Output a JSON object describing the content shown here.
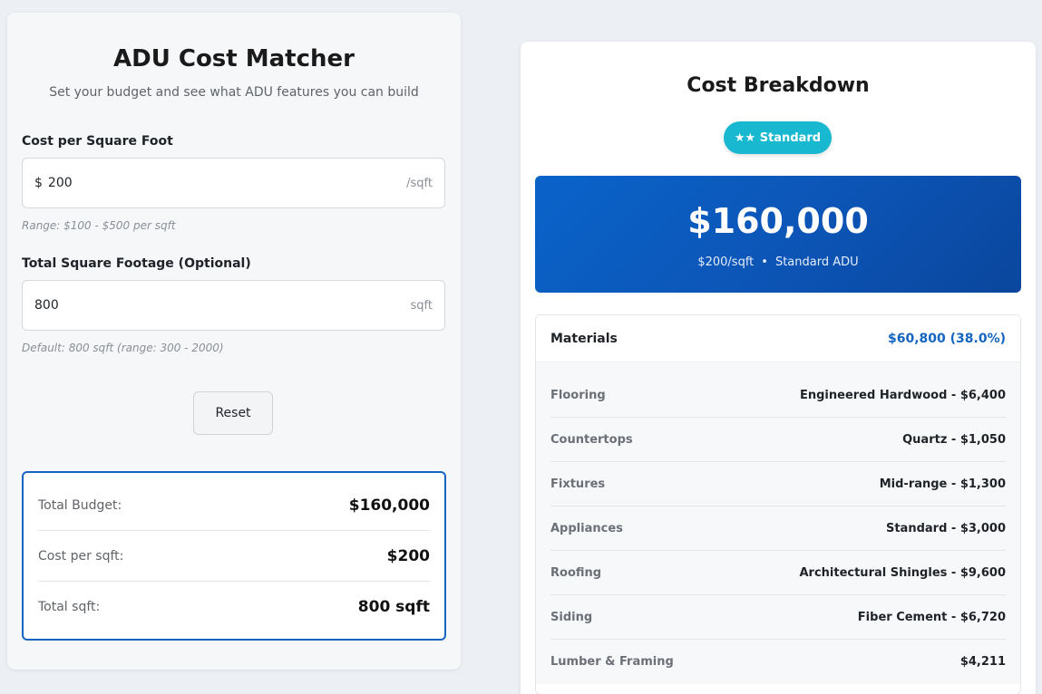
{
  "app": {
    "title": "ADU Cost Matcher",
    "subtitle": "Set your budget and see what ADU features you can build"
  },
  "form": {
    "cost_label": "Cost per Square Foot",
    "cost_prefix": "$",
    "cost_value": "200",
    "cost_suffix": "/sqft",
    "cost_hint": "Range: $100 - $500 per sqft",
    "sqft_label": "Total Square Footage (Optional)",
    "sqft_value": "800",
    "sqft_suffix": "sqft",
    "sqft_hint": "Default: 800 sqft (range: 300 - 2000)",
    "reset_label": "Reset"
  },
  "summary": [
    {
      "label": "Total Budget:",
      "value": "$160,000"
    },
    {
      "label": "Cost per sqft:",
      "value": "$200"
    },
    {
      "label": "Total sqft:",
      "value": "800 sqft"
    }
  ],
  "breakdown": {
    "title": "Cost Breakdown",
    "tier_badge": "★★ Standard",
    "tier_color": "#17b8d0",
    "total_amount": "$160,000",
    "total_rate": "$200/sqft",
    "total_separator": "•",
    "total_type": "Standard ADU",
    "accent_color": "#1565c0"
  },
  "materials": {
    "label": "Materials",
    "total": "$60,800 (38.0%)",
    "items": [
      {
        "name": "Flooring",
        "choice": "Engineered Hardwood - $6,400"
      },
      {
        "name": "Countertops",
        "choice": "Quartz - $1,050"
      },
      {
        "name": "Fixtures",
        "choice": "Mid-range - $1,300"
      },
      {
        "name": "Appliances",
        "choice": "Standard - $3,000"
      },
      {
        "name": "Roofing",
        "choice": "Architectural Shingles - $9,600"
      },
      {
        "name": "Siding",
        "choice": "Fiber Cement - $6,720"
      },
      {
        "name": "Lumber & Framing",
        "choice": "$4,211"
      }
    ]
  }
}
